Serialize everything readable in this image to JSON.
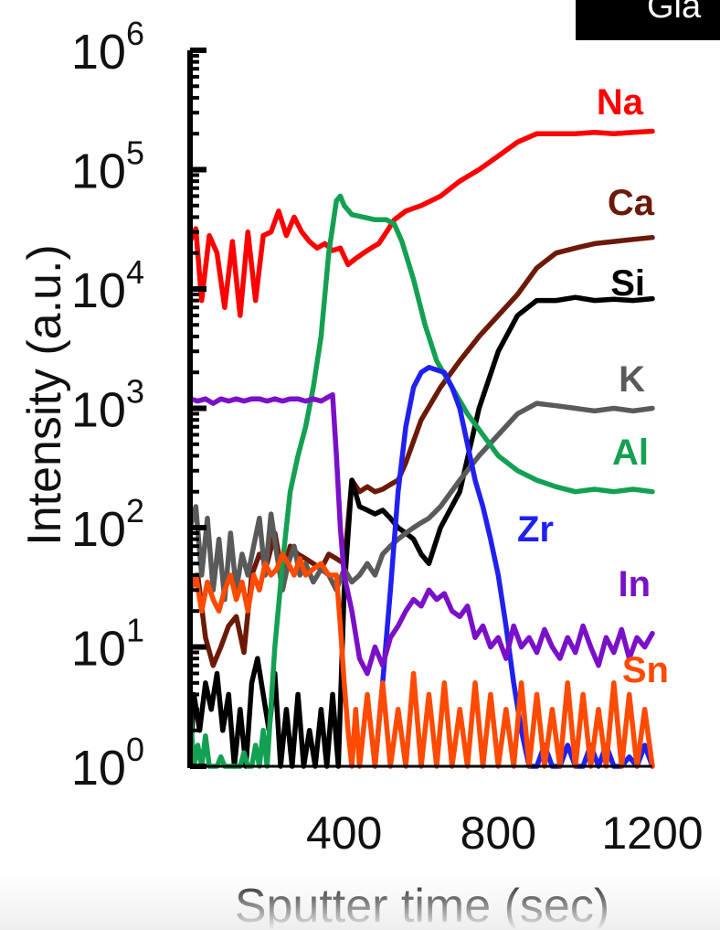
{
  "corner_tag": "Gla",
  "chart_data": {
    "type": "line",
    "title": "",
    "xlabel": "Sputter time (sec)",
    "ylabel": "Intensity (a.u.)",
    "xlim": [
      0,
      1200
    ],
    "ylim": [
      1,
      1000000
    ],
    "yscale": "log",
    "xticks": [
      400,
      800,
      1200
    ],
    "yticks": [
      {
        "base": "10",
        "exp": "0",
        "value": 1
      },
      {
        "base": "10",
        "exp": "1",
        "value": 10
      },
      {
        "base": "10",
        "exp": "2",
        "value": 100
      },
      {
        "base": "10",
        "exp": "3",
        "value": 1000
      },
      {
        "base": "10",
        "exp": "4",
        "value": 10000
      },
      {
        "base": "10",
        "exp": "5",
        "value": 100000
      },
      {
        "base": "10",
        "exp": "6",
        "value": 1000000
      }
    ],
    "legend": "labels at right end of each series",
    "grid": false,
    "series": [
      {
        "name": "Na",
        "color": "#ff0000",
        "x": [
          0,
          15,
          30,
          50,
          70,
          90,
          110,
          130,
          150,
          170,
          190,
          210,
          230,
          250,
          270,
          290,
          310,
          330,
          350,
          370,
          390,
          410,
          430,
          450,
          470,
          490,
          510,
          530,
          560,
          600,
          650,
          700,
          750,
          800,
          850,
          900,
          950,
          1000,
          1050,
          1100,
          1150,
          1200
        ],
        "y": [
          25000,
          32000,
          8000,
          28000,
          20000,
          7000,
          25000,
          6000,
          30000,
          8000,
          28000,
          30000,
          45000,
          28000,
          40000,
          30000,
          25000,
          22000,
          24000,
          21000,
          22000,
          16000,
          18000,
          20000,
          22000,
          24000,
          30000,
          38000,
          45000,
          50000,
          60000,
          80000,
          100000,
          130000,
          170000,
          200000,
          200000,
          200000,
          205000,
          200000,
          205000,
          210000
        ]
      },
      {
        "name": "Ca",
        "color": "#6b1a07",
        "x": [
          0,
          20,
          40,
          60,
          80,
          100,
          120,
          140,
          160,
          180,
          200,
          220,
          240,
          260,
          280,
          300,
          320,
          340,
          360,
          380,
          400,
          420,
          440,
          460,
          480,
          500,
          520,
          540,
          560,
          600,
          650,
          700,
          750,
          800,
          850,
          900,
          950,
          1000,
          1050,
          1100,
          1150,
          1200
        ],
        "y": [
          30,
          40,
          12,
          7,
          10,
          15,
          18,
          9,
          40,
          60,
          50,
          90,
          40,
          70,
          60,
          55,
          50,
          45,
          60,
          55,
          50,
          250,
          200,
          220,
          200,
          210,
          230,
          250,
          350,
          800,
          1500,
          2500,
          4000,
          6000,
          9000,
          15000,
          20000,
          22000,
          24000,
          25000,
          26000,
          27000
        ]
      },
      {
        "name": "Si",
        "color": "#000000",
        "x": [
          0,
          10,
          25,
          40,
          55,
          70,
          85,
          100,
          115,
          130,
          145,
          160,
          175,
          190,
          205,
          220,
          235,
          250,
          265,
          280,
          295,
          310,
          325,
          340,
          355,
          370,
          385,
          400,
          420,
          440,
          460,
          480,
          500,
          520,
          540,
          560,
          580,
          600,
          620,
          650,
          700,
          750,
          800,
          850,
          900,
          950,
          1000,
          1050,
          1100,
          1150,
          1200
        ],
        "y": [
          1,
          4,
          2,
          5,
          3,
          6,
          2,
          4,
          1,
          3,
          1,
          5,
          8,
          4,
          2,
          6,
          1,
          3,
          1,
          4,
          1,
          2,
          1,
          3,
          1,
          4,
          1,
          30,
          250,
          150,
          140,
          130,
          140,
          120,
          100,
          90,
          80,
          60,
          50,
          100,
          200,
          1000,
          3000,
          6000,
          8000,
          8000,
          8500,
          8000,
          8200,
          8000,
          8300
        ]
      },
      {
        "name": "K",
        "color": "#5a5a5a",
        "x": [
          0,
          15,
          30,
          45,
          60,
          75,
          90,
          105,
          120,
          135,
          150,
          165,
          180,
          195,
          210,
          225,
          240,
          255,
          270,
          285,
          300,
          320,
          340,
          360,
          380,
          400,
          420,
          440,
          460,
          480,
          500,
          520,
          540,
          560,
          580,
          600,
          620,
          650,
          700,
          750,
          800,
          850,
          900,
          950,
          1000,
          1050,
          1100,
          1150,
          1200
        ],
        "y": [
          100,
          150,
          40,
          120,
          30,
          80,
          25,
          90,
          30,
          60,
          40,
          70,
          120,
          40,
          130,
          60,
          30,
          50,
          70,
          40,
          50,
          35,
          45,
          40,
          30,
          45,
          35,
          40,
          50,
          40,
          60,
          70,
          80,
          90,
          100,
          110,
          120,
          150,
          250,
          400,
          600,
          900,
          1100,
          1050,
          1000,
          950,
          1000,
          950,
          1000
        ]
      },
      {
        "name": "Al",
        "color": "#13a052",
        "x": [
          0,
          10,
          20,
          30,
          40,
          50,
          60,
          70,
          80,
          90,
          100,
          110,
          120,
          130,
          140,
          150,
          160,
          170,
          180,
          190,
          200,
          220,
          240,
          260,
          280,
          300,
          320,
          340,
          360,
          380,
          390,
          400,
          420,
          450,
          480,
          510,
          530,
          550,
          580,
          610,
          640,
          680,
          720,
          760,
          800,
          850,
          900,
          950,
          1000,
          1050,
          1100,
          1150,
          1200
        ],
        "y": [
          3,
          1,
          1.5,
          1,
          1.8,
          1,
          1,
          1,
          1.2,
          1,
          1,
          1,
          1,
          1,
          1.3,
          1,
          1,
          1.5,
          1,
          2,
          1,
          10,
          50,
          200,
          400,
          700,
          1500,
          4000,
          20000,
          55000,
          60000,
          50000,
          42000,
          40000,
          38000,
          38000,
          35000,
          25000,
          12000,
          5000,
          2500,
          1500,
          900,
          600,
          400,
          300,
          250,
          220,
          200,
          210,
          200,
          210,
          200
        ]
      },
      {
        "name": "Zr",
        "color": "#2020f0",
        "x": [
          480,
          500,
          520,
          540,
          560,
          580,
          600,
          620,
          640,
          660,
          680,
          700,
          720,
          740,
          760,
          780,
          800,
          820,
          840,
          860,
          880,
          900,
          920,
          940,
          960,
          980,
          1000,
          1020,
          1040,
          1060,
          1080,
          1100,
          1120,
          1140,
          1160,
          1180,
          1200
        ],
        "y": [
          1,
          5,
          30,
          200,
          700,
          1500,
          2000,
          2200,
          2100,
          2000,
          1500,
          1000,
          500,
          250,
          150,
          80,
          40,
          15,
          5,
          2,
          1,
          1,
          1.5,
          1,
          1,
          1.5,
          1,
          1,
          1.5,
          1,
          1.5,
          1,
          1,
          1.2,
          1,
          1.5,
          1
        ]
      },
      {
        "name": "In",
        "color": "#7a10c8",
        "x": [
          0,
          20,
          40,
          60,
          80,
          100,
          120,
          140,
          160,
          180,
          200,
          220,
          240,
          260,
          280,
          300,
          320,
          340,
          360,
          370,
          380,
          390,
          400,
          420,
          440,
          460,
          480,
          500,
          520,
          540,
          560,
          580,
          600,
          620,
          640,
          660,
          680,
          700,
          720,
          740,
          760,
          780,
          800,
          820,
          840,
          860,
          880,
          900,
          920,
          940,
          960,
          980,
          1000,
          1020,
          1040,
          1060,
          1080,
          1100,
          1120,
          1140,
          1160,
          1180,
          1200
        ],
        "y": [
          1200,
          1150,
          1200,
          1100,
          1200,
          1150,
          1200,
          1150,
          1200,
          1200,
          1150,
          1200,
          1150,
          1200,
          1200,
          1150,
          1200,
          1150,
          1250,
          1300,
          400,
          100,
          40,
          20,
          8,
          6,
          10,
          7,
          12,
          15,
          20,
          25,
          22,
          30,
          25,
          28,
          20,
          18,
          22,
          12,
          15,
          10,
          12,
          8,
          15,
          10,
          12,
          9,
          14,
          10,
          8,
          12,
          9,
          15,
          10,
          7,
          12,
          9,
          14,
          8,
          12,
          10,
          13
        ]
      },
      {
        "name": "Sn",
        "color": "#ff4a00",
        "x": [
          0,
          15,
          30,
          45,
          60,
          75,
          90,
          105,
          120,
          135,
          150,
          165,
          180,
          195,
          210,
          225,
          240,
          255,
          270,
          285,
          300,
          320,
          340,
          360,
          380,
          390,
          400,
          410,
          420,
          430,
          440,
          460,
          480,
          500,
          520,
          540,
          560,
          580,
          600,
          620,
          640,
          660,
          680,
          700,
          720,
          740,
          760,
          780,
          800,
          820,
          840,
          860,
          880,
          900,
          920,
          940,
          960,
          980,
          1000,
          1020,
          1040,
          1060,
          1080,
          1100,
          1120,
          1140,
          1160,
          1180,
          1200
        ],
        "y": [
          30,
          40,
          20,
          35,
          25,
          20,
          30,
          40,
          25,
          35,
          20,
          40,
          30,
          50,
          40,
          45,
          60,
          50,
          40,
          55,
          40,
          45,
          50,
          40,
          40,
          15,
          5,
          2,
          1,
          3,
          1,
          4,
          1,
          5,
          1,
          3,
          1,
          6,
          1,
          4,
          1,
          5,
          1,
          3,
          1,
          5,
          1,
          4,
          1,
          3,
          1,
          5,
          1,
          4,
          1,
          3,
          1,
          5,
          1,
          4,
          1,
          3,
          1,
          5,
          1,
          4,
          1,
          3,
          1
        ]
      }
    ]
  }
}
